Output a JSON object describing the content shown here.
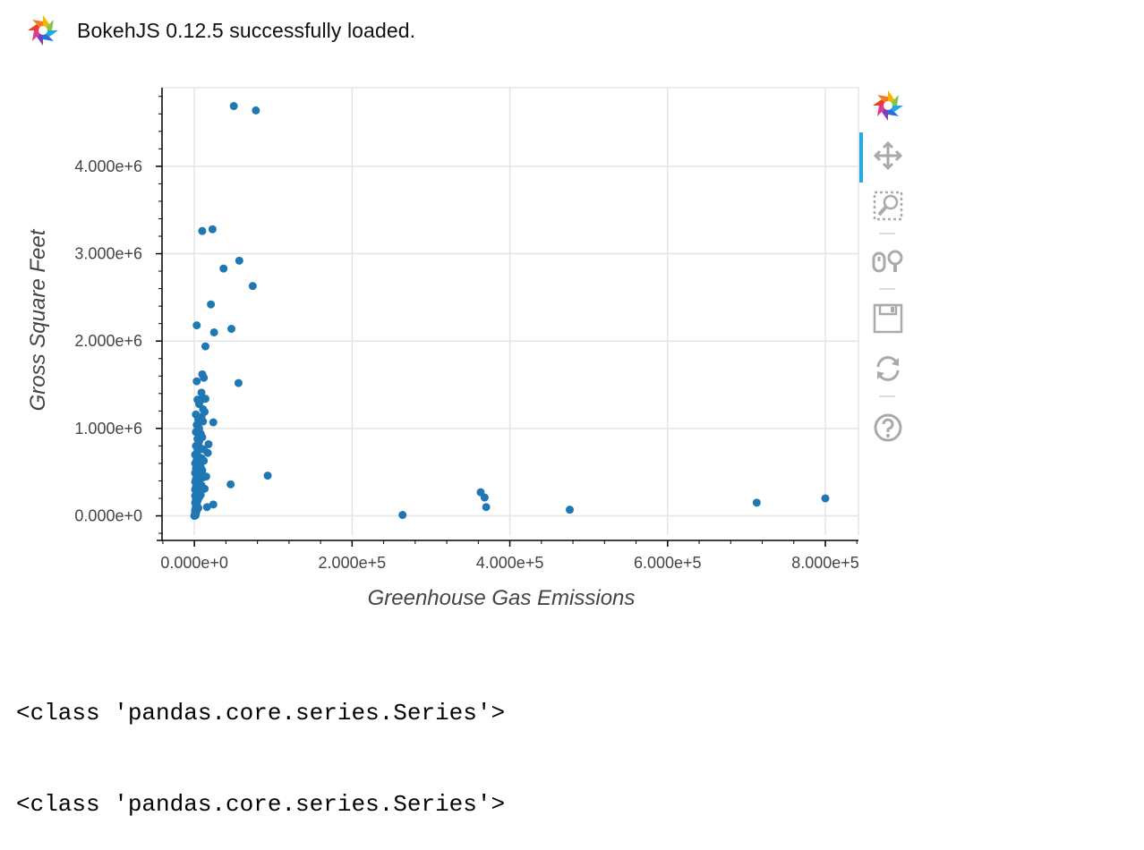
{
  "banner": {
    "text": "BokehJS 0.12.5 successfully loaded.",
    "logo_icon": "bokeh-logo-icon"
  },
  "toolbar": {
    "tools": [
      {
        "name": "bokeh-logo-icon"
      },
      {
        "name": "pan-icon",
        "active": true
      },
      {
        "name": "box-zoom-icon"
      },
      {
        "name": "wheel-zoom-icon"
      },
      {
        "name": "save-icon"
      },
      {
        "name": "reset-icon"
      },
      {
        "name": "help-icon"
      }
    ],
    "accent_color": "#26aae1",
    "icon_color": "#aaaaaa"
  },
  "output": {
    "lines": [
      "<class 'pandas.core.series.Series'>",
      "<class 'pandas.core.series.Series'>"
    ]
  },
  "chart_data": {
    "type": "scatter",
    "title": "",
    "xlabel": "Greenhouse Gas Emissions",
    "ylabel": "Gross Square Feet",
    "xlim": [
      -41000,
      842000
    ],
    "ylim": [
      -220000,
      4900000
    ],
    "xticks": [
      0,
      200000,
      400000,
      600000,
      800000
    ],
    "xtick_labels": [
      "0.000e+0",
      "2.000e+5",
      "4.000e+5",
      "6.000e+5",
      "8.000e+5"
    ],
    "yticks": [
      0,
      1000000,
      2000000,
      3000000,
      4000000
    ],
    "ytick_labels": [
      "0.000e+0",
      "1.000e+6",
      "2.000e+6",
      "3.000e+6",
      "4.000e+6"
    ],
    "grid": true,
    "legend": "none",
    "marker_color": "#1f77b4",
    "points": [
      [
        50000,
        4690000
      ],
      [
        78000,
        4640000
      ],
      [
        10000,
        3260000
      ],
      [
        23000,
        3280000
      ],
      [
        57000,
        2920000
      ],
      [
        37000,
        2830000
      ],
      [
        74000,
        2630000
      ],
      [
        21000,
        2420000
      ],
      [
        3000,
        2180000
      ],
      [
        47000,
        2140000
      ],
      [
        25000,
        2100000
      ],
      [
        14000,
        1940000
      ],
      [
        10000,
        1620000
      ],
      [
        12000,
        1580000
      ],
      [
        3000,
        1540000
      ],
      [
        56000,
        1520000
      ],
      [
        9000,
        1410000
      ],
      [
        14000,
        1340000
      ],
      [
        4000,
        1330000
      ],
      [
        9000,
        1330000
      ],
      [
        6000,
        1280000
      ],
      [
        11000,
        1220000
      ],
      [
        13000,
        1190000
      ],
      [
        2000,
        1160000
      ],
      [
        9000,
        1130000
      ],
      [
        5000,
        1100000
      ],
      [
        11000,
        1080000
      ],
      [
        24000,
        1070000
      ],
      [
        3000,
        1040000
      ],
      [
        6000,
        1000000
      ],
      [
        2000,
        960000
      ],
      [
        8000,
        940000
      ],
      [
        10000,
        900000
      ],
      [
        4000,
        880000
      ],
      [
        6000,
        850000
      ],
      [
        18000,
        820000
      ],
      [
        2000,
        800000
      ],
      [
        7000,
        780000
      ],
      [
        12000,
        760000
      ],
      [
        4000,
        740000
      ],
      [
        17000,
        720000
      ],
      [
        1000,
        700000
      ],
      [
        5000,
        680000
      ],
      [
        9000,
        660000
      ],
      [
        3000,
        640000
      ],
      [
        12000,
        630000
      ],
      [
        6000,
        610000
      ],
      [
        1000,
        600000
      ],
      [
        4000,
        580000
      ],
      [
        8000,
        560000
      ],
      [
        2000,
        540000
      ],
      [
        10000,
        520000
      ],
      [
        5000,
        500000
      ],
      [
        1000,
        490000
      ],
      [
        7000,
        470000
      ],
      [
        3000,
        455000
      ],
      [
        15000,
        450000
      ],
      [
        93000,
        460000
      ],
      [
        11000,
        440000
      ],
      [
        2000,
        420000
      ],
      [
        6000,
        400000
      ],
      [
        1000,
        390000
      ],
      [
        46000,
        360000
      ],
      [
        4000,
        370000
      ],
      [
        9000,
        350000
      ],
      [
        2000,
        330000
      ],
      [
        13000,
        310000
      ],
      [
        1000,
        300000
      ],
      [
        5000,
        280000
      ],
      [
        3000,
        260000
      ],
      [
        8000,
        240000
      ],
      [
        1000,
        230000
      ],
      [
        6000,
        210000
      ],
      [
        2000,
        190000
      ],
      [
        4000,
        170000
      ],
      [
        1000,
        150000
      ],
      [
        24000,
        130000
      ],
      [
        3000,
        130000
      ],
      [
        16000,
        100000
      ],
      [
        2000,
        110000
      ],
      [
        5000,
        90000
      ],
      [
        1000,
        70000
      ],
      [
        3000,
        60000
      ],
      [
        1000,
        50000
      ],
      [
        2000,
        30000
      ],
      [
        1000,
        20000
      ],
      [
        500,
        10000
      ],
      [
        1500,
        5000
      ],
      [
        0,
        0
      ],
      [
        264000,
        10000
      ],
      [
        363000,
        270000
      ],
      [
        368000,
        210000
      ],
      [
        370000,
        100000
      ],
      [
        476000,
        70000
      ],
      [
        713000,
        150000
      ],
      [
        800000,
        200000
      ]
    ]
  }
}
